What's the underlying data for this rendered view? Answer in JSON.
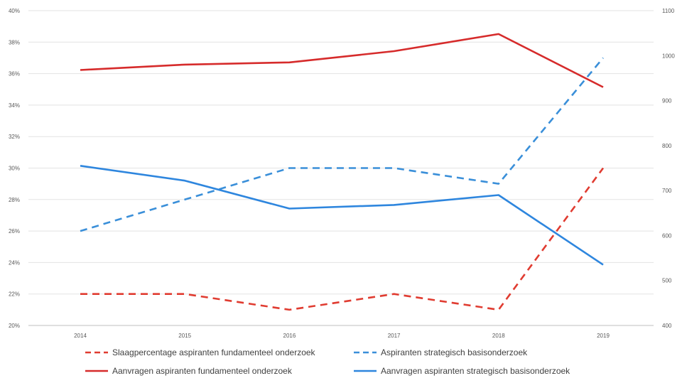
{
  "chart_data": {
    "type": "line",
    "title": "",
    "categories": [
      "2014",
      "2015",
      "2016",
      "2017",
      "2018",
      "2019"
    ],
    "y_left": {
      "ticks": [
        "20%",
        "22%",
        "24%",
        "26%",
        "28%",
        "30%",
        "32%",
        "34%",
        "36%",
        "38%",
        "40%"
      ],
      "range": [
        20,
        40
      ]
    },
    "y_right": {
      "ticks": [
        "400",
        "500",
        "600",
        "700",
        "800",
        "900",
        "1000",
        "1100"
      ],
      "range": [
        400,
        1100
      ]
    },
    "grid": true,
    "legend_position": "bottom",
    "series": [
      {
        "name": "Slaagpercentage aspiranten fundamenteel onderzoek",
        "axis": "left",
        "style": "dashed",
        "color": "#e03c31",
        "values": [
          22,
          22,
          21,
          22,
          21,
          30
        ]
      },
      {
        "name": "Aspiranten strategisch basisonderzoek",
        "axis": "left",
        "style": "dashed",
        "color": "#3a8fd9",
        "values": [
          26,
          28,
          30,
          30,
          29,
          37
        ]
      },
      {
        "name": "Aanvragen aspiranten fundamenteel onderzoek",
        "axis": "right",
        "style": "solid",
        "color": "#d62b2b",
        "values": [
          968,
          980,
          985,
          1010,
          1048,
          930
        ]
      },
      {
        "name": "Aanvragen aspiranten strategisch basisonderzoek",
        "axis": "right",
        "style": "solid",
        "color": "#2e86de",
        "values": [
          755,
          722,
          660,
          668,
          690,
          535
        ]
      }
    ]
  }
}
